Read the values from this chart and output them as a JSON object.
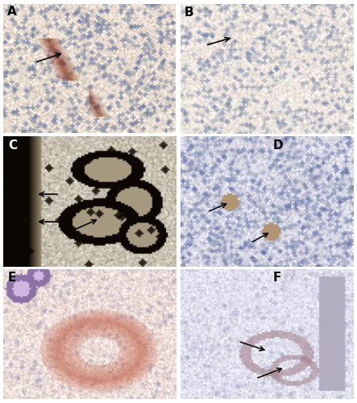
{
  "figure_size": [
    4.43,
    5.0
  ],
  "dpi": 100,
  "panels": [
    "A",
    "B",
    "C",
    "D",
    "E",
    "F"
  ],
  "grid": {
    "rows": 3,
    "cols": 2
  },
  "label_fontsize": 11,
  "label_color": "black",
  "label_weight": "bold",
  "border_color": "black",
  "border_linewidth": 0.8,
  "background_color": "white",
  "panel_backgrounds": {
    "A": "#e8ddd0",
    "B": "#ede6de",
    "C": "#c8c0b0",
    "D": "#d8d8e5",
    "E": "#edddd8",
    "F": "#e0e0ee"
  }
}
